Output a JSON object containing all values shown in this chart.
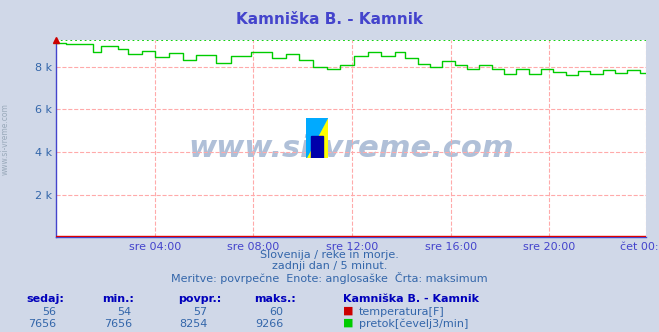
{
  "title": "Kamniška B. - Kamnik",
  "title_color": "#4444cc",
  "bg_color": "#d0d8e8",
  "plot_bg_color": "#ffffff",
  "grid_color": "#ffaaaa",
  "xlabel_color": "#4444cc",
  "xtick_labels": [
    "sre 04:00",
    "sre 08:00",
    "sre 12:00",
    "sre 16:00",
    "sre 20:00",
    "čet 00:00"
  ],
  "xtick_positions": [
    48,
    96,
    144,
    192,
    240,
    287
  ],
  "ytick_labels": [
    "2 k",
    "4 k",
    "6 k",
    "8 k"
  ],
  "ytick_positions": [
    2000,
    4000,
    6000,
    8000
  ],
  "ymax": 9266,
  "ymin": 0,
  "num_points": 288,
  "temp_color": "#dd0000",
  "flow_color": "#00cc00",
  "watermark_text": "www.si-vreme.com",
  "watermark_color": "#b0c0d8",
  "subtitle1": "Slovenija / reke in morje.",
  "subtitle2": "zadnji dan / 5 minut.",
  "subtitle3": "Meritve: povrpečne  Enote: anglosaške  Črta: maksimum",
  "subtitle_color": "#3366aa",
  "table_headers": [
    "sedaj:",
    "min.:",
    "povpr.:",
    "maks.:",
    "Kamniška B. - Kamnik"
  ],
  "table_temp": [
    56,
    54,
    57,
    60
  ],
  "table_flow": [
    7656,
    7656,
    8254,
    9266
  ],
  "temp_label": "temperatura[F]",
  "flow_label": "pretok[čevelj3/min]",
  "table_header_color": "#0000bb",
  "table_value_color": "#3366aa",
  "flow_max_value": 9266,
  "spine_color": "#4444cc",
  "arrow_color": "#cc0000",
  "left_text": "www.si-vreme.com",
  "left_text_color": "#9aaabb"
}
